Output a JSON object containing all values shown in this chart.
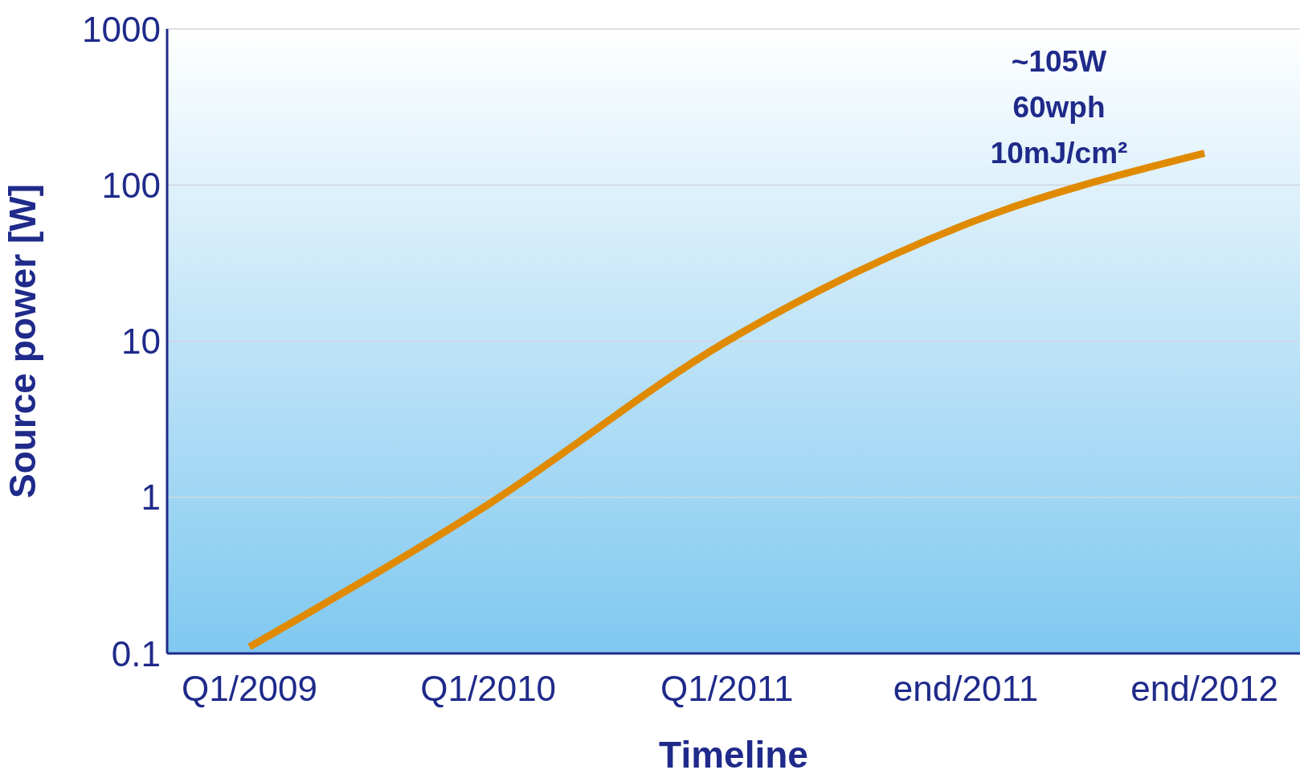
{
  "chart_data": {
    "type": "line",
    "xlabel": "Timeline",
    "ylabel": "Source power [W]",
    "categories": [
      "Q1/2009",
      "Q1/2010",
      "Q1/2011",
      "end/2011",
      "end/2012"
    ],
    "series": [
      {
        "color": "#e08a00",
        "values": [
          0.11,
          0.9,
          10,
          56,
          160
        ]
      }
    ],
    "ylim": [
      0.1,
      1000
    ],
    "yticks": [
      0.1,
      1,
      10,
      100,
      1000
    ],
    "log": true,
    "grid": "y",
    "marker": "none",
    "line_style": "solid",
    "annotations": [
      "~105W",
      "60wph",
      "10mJ/cm²"
    ]
  }
}
